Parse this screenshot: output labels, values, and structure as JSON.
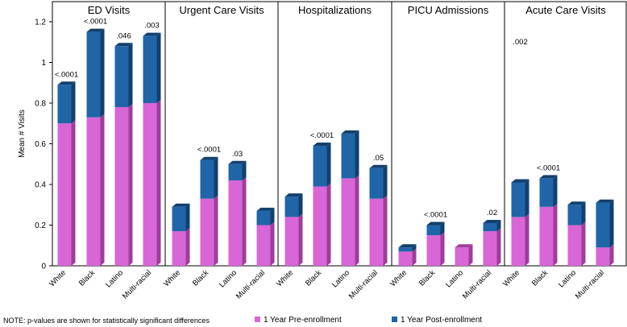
{
  "chart_data": {
    "type": "bar",
    "stacked": true,
    "ylabel": "Mean # Visits",
    "ylim": [
      0,
      1.2
    ],
    "yticks": [
      0,
      0.2,
      0.4,
      0.6,
      0.8,
      1,
      1.2
    ],
    "ytick_labels": [
      "0",
      "0.2",
      "0.4",
      "0.6",
      "0.8",
      "1",
      "1.2"
    ],
    "categories": [
      "White",
      "Black",
      "Latino",
      "Multi-racial"
    ],
    "series_names": [
      "1 Year Pre-enrollment",
      "1 Year Post-enrollment"
    ],
    "colors": {
      "pre": "#d966d6",
      "pre_dark": "#9e3d9b",
      "post": "#2065a8",
      "post_dark": "#12406e"
    },
    "note": "NOTE: p-values are shown for statistically significant differences",
    "panels": [
      {
        "title": "ED Visits",
        "pre": [
          0.7,
          0.73,
          0.78,
          0.8
        ],
        "post": [
          0.19,
          0.42,
          0.3,
          0.33
        ],
        "pvalues": [
          "<.0001",
          "<.0001",
          ".046",
          ".003"
        ]
      },
      {
        "title": "Urgent Care Visits",
        "pre": [
          0.17,
          0.33,
          0.42,
          0.2
        ],
        "post": [
          0.12,
          0.19,
          0.08,
          0.07
        ],
        "pvalues": [
          "",
          "<.0001",
          ".03",
          ""
        ]
      },
      {
        "title": "Hospitalizations",
        "pre": [
          0.24,
          0.39,
          0.43,
          0.33
        ],
        "post": [
          0.1,
          0.2,
          0.22,
          0.15
        ],
        "pvalues": [
          "",
          "<.0001",
          "",
          ".05"
        ]
      },
      {
        "title": "PICU Admissions",
        "pre": [
          0.07,
          0.15,
          0.09,
          0.17
        ],
        "post": [
          0.02,
          0.05,
          0.0,
          0.04
        ],
        "pvalues": [
          "",
          "<.0001",
          "",
          ".02"
        ]
      },
      {
        "title": "Acute Care Visits",
        "pre": [
          0.24,
          0.29,
          0.2,
          0.09
        ],
        "post": [
          0.17,
          0.14,
          0.1,
          0.22
        ],
        "pvalues": [
          ".002",
          "<.0001",
          "",
          ""
        ],
        "pvalue_positions": [
          "top",
          "bar",
          "",
          ""
        ]
      }
    ]
  }
}
